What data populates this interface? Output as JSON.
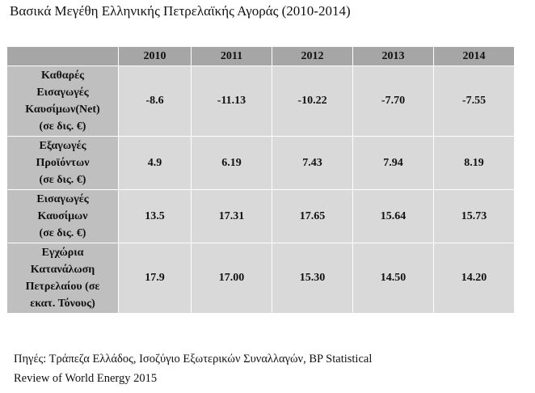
{
  "header": {
    "title": "Βασικά Μεγέθη Ελληνικής Πετρελαϊκής Αγοράς (2010-2014)"
  },
  "table": {
    "columns": [
      "2010",
      "2011",
      "2012",
      "2013",
      "2014"
    ],
    "rows": [
      {
        "label": [
          "Καθαρές",
          "Εισαγωγές",
          "Καυσίμων(Net)",
          "(σε δις. €)"
        ],
        "cells": [
          "-8.6",
          "-11.13",
          "-10.22",
          "-7.70",
          "-7.55"
        ]
      },
      {
        "label": [
          "Εξαγωγές",
          "Προϊόντων",
          "(σε δις. €)"
        ],
        "cells": [
          "4.9",
          "6.19",
          "7.43",
          "7.94",
          "8.19"
        ]
      },
      {
        "label": [
          "Εισαγωγές",
          "Καυσίμων",
          "(σε δις. €)"
        ],
        "cells": [
          "13.5",
          "17.31",
          "17.65",
          "15.64",
          "15.73"
        ]
      },
      {
        "label": [
          "Εγχώρια",
          "Κατανάλωση",
          "Πετρελαίου (σε",
          "εκατ. Τόνους)"
        ],
        "cells": [
          "17.9",
          "17.00",
          "15.30",
          "14.50",
          "14.20"
        ]
      }
    ]
  },
  "footer": {
    "source": [
      "Πηγές: Τράπεζα Ελλάδος, Ισοζύγιο Εξωτερικών Συναλλαγών, BP Statistical",
      "Review of World Energy 2015"
    ]
  }
}
